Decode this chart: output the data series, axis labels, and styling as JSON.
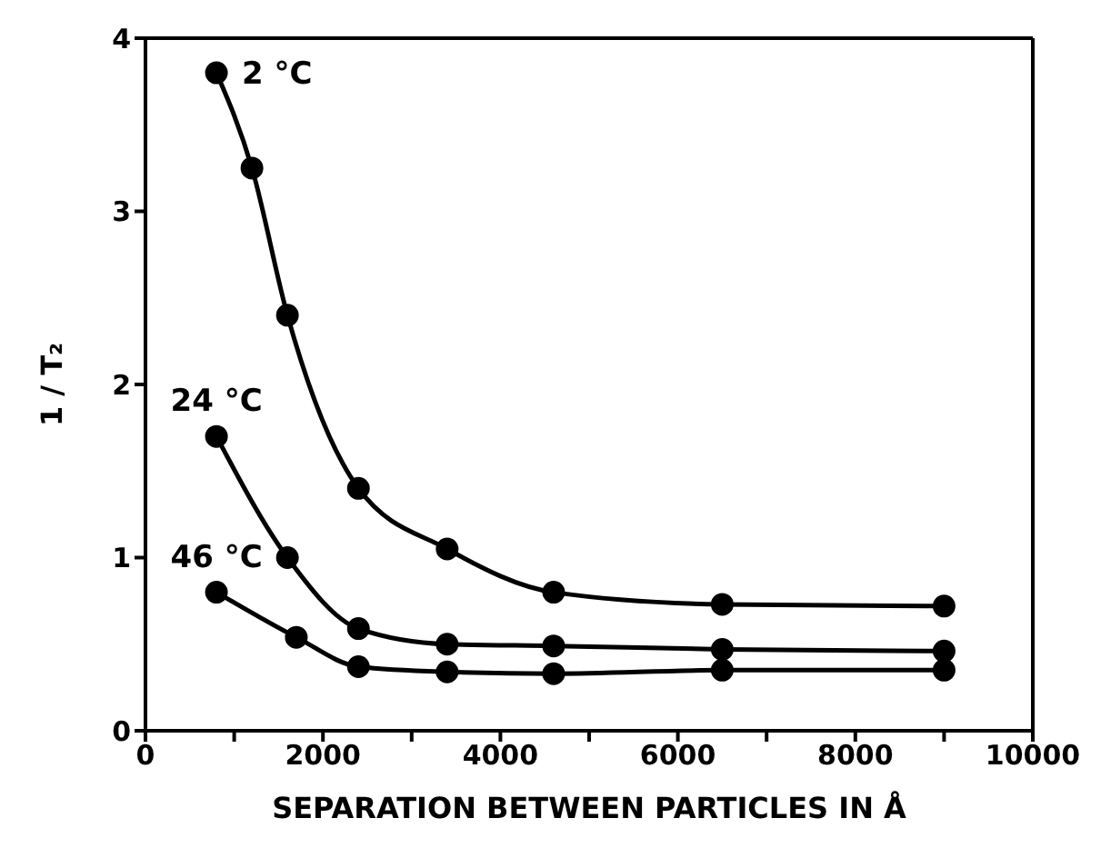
{
  "chart_data": {
    "type": "line",
    "xlabel": "SEPARATION BETWEEN PARTICLES IN Å",
    "ylabel": "1 / T₂",
    "xlim": [
      0,
      10000
    ],
    "xticks": [
      0,
      {
        "value": 1000,
        "label": null
      },
      2000,
      {
        "value": 3000,
        "label": null
      },
      4000,
      {
        "value": 5000,
        "label": null
      },
      6000,
      {
        "value": 7000,
        "label": null
      },
      8000,
      {
        "value": 9000,
        "label": null
      },
      10000
    ],
    "ylim": [
      0,
      4
    ],
    "yticks": [
      0,
      1,
      2,
      3,
      4
    ],
    "grid": false,
    "legend": false,
    "marker": "circle",
    "line_style": "solid",
    "series": [
      {
        "name": "2 °C",
        "color": "#000000",
        "x": [
          800,
          1200,
          1600,
          2400,
          3400,
          4600,
          6500,
          9000
        ],
        "values": [
          3.8,
          3.25,
          2.4,
          1.4,
          1.05,
          0.8,
          0.73,
          0.72
        ]
      },
      {
        "name": "24 °C",
        "color": "#000000",
        "x": [
          800,
          1600,
          2400,
          3400,
          4600,
          6500,
          9000
        ],
        "values": [
          1.7,
          1.0,
          0.59,
          0.5,
          0.49,
          0.47,
          0.46
        ]
      },
      {
        "name": "46 °C",
        "color": "#000000",
        "x": [
          800,
          1700,
          2400,
          3400,
          4600,
          6500,
          9000
        ],
        "values": [
          0.8,
          0.54,
          0.37,
          0.34,
          0.33,
          0.35,
          0.35
        ]
      }
    ]
  }
}
